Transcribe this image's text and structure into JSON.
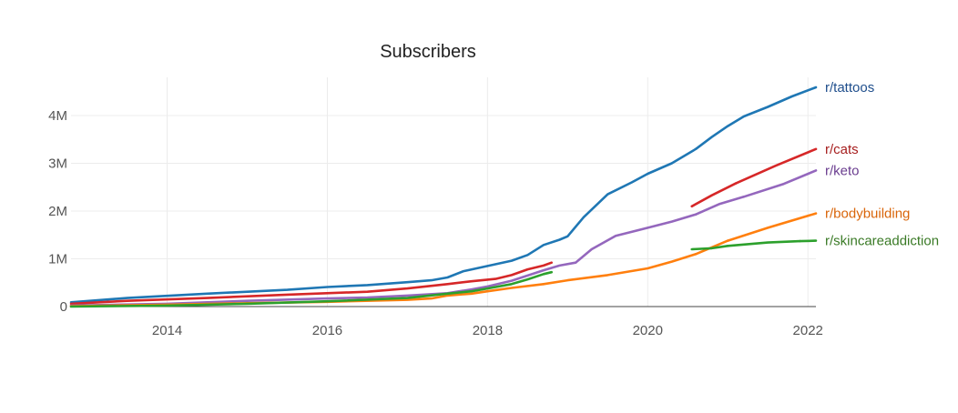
{
  "chart_data": {
    "type": "line",
    "title": "Subscribers",
    "xlabel": "",
    "ylabel": "",
    "xlim": [
      2012.8,
      2022.1
    ],
    "ylim": [
      0,
      4800000
    ],
    "x_ticks": [
      2014,
      2016,
      2018,
      2020,
      2022
    ],
    "x_tick_labels": [
      "2014",
      "2016",
      "2018",
      "2020",
      "2022"
    ],
    "y_ticks": [
      0,
      1000000,
      2000000,
      3000000,
      4000000
    ],
    "y_tick_labels": [
      "0",
      "1M",
      "2M",
      "3M",
      "4M"
    ],
    "grid": true,
    "series": [
      {
        "name": "r/tattoos",
        "color": "#1f77b4",
        "label_color": "#1f4e8c",
        "segments": [
          [
            [
              2012.8,
              90000
            ],
            [
              2013.5,
              180000
            ],
            [
              2014.5,
              270000
            ],
            [
              2015.5,
              350000
            ],
            [
              2016.0,
              410000
            ],
            [
              2016.5,
              450000
            ],
            [
              2017.0,
              510000
            ],
            [
              2017.3,
              550000
            ],
            [
              2017.5,
              610000
            ],
            [
              2017.7,
              740000
            ],
            [
              2018.0,
              850000
            ],
            [
              2018.3,
              960000
            ],
            [
              2018.5,
              1080000
            ],
            [
              2018.7,
              1290000
            ],
            [
              2018.9,
              1400000
            ],
            [
              2019.0,
              1470000
            ],
            [
              2019.2,
              1870000
            ],
            [
              2019.5,
              2350000
            ],
            [
              2019.8,
              2600000
            ],
            [
              2020.0,
              2780000
            ],
            [
              2020.3,
              3000000
            ],
            [
              2020.6,
              3300000
            ],
            [
              2020.8,
              3550000
            ],
            [
              2021.0,
              3780000
            ],
            [
              2021.2,
              3980000
            ],
            [
              2021.5,
              4180000
            ],
            [
              2021.8,
              4400000
            ],
            [
              2022.1,
              4590000
            ]
          ]
        ]
      },
      {
        "name": "r/cats",
        "color": "#d62728",
        "label_color": "#a61e1e",
        "segments": [
          [
            [
              2012.8,
              60000
            ],
            [
              2013.5,
              120000
            ],
            [
              2014.5,
              180000
            ],
            [
              2015.5,
              250000
            ],
            [
              2016.5,
              310000
            ],
            [
              2017.0,
              380000
            ],
            [
              2017.5,
              470000
            ],
            [
              2017.8,
              530000
            ],
            [
              2018.1,
              580000
            ],
            [
              2018.3,
              660000
            ],
            [
              2018.5,
              780000
            ],
            [
              2018.7,
              860000
            ],
            [
              2018.8,
              920000
            ]
          ],
          [
            [
              2020.55,
              2100000
            ],
            [
              2020.8,
              2330000
            ],
            [
              2021.1,
              2580000
            ]
          ],
          [
            [
              2021.1,
              2580000
            ],
            [
              2021.6,
              2950000
            ],
            [
              2022.1,
              3300000
            ]
          ]
        ]
      },
      {
        "name": "r/keto",
        "color": "#9467bd",
        "label_color": "#6a3d8f",
        "segments": [
          [
            [
              2012.8,
              20000
            ],
            [
              2014.0,
              60000
            ],
            [
              2015.0,
              120000
            ],
            [
              2016.0,
              170000
            ],
            [
              2016.5,
              190000
            ],
            [
              2017.0,
              230000
            ],
            [
              2017.5,
              280000
            ],
            [
              2017.8,
              360000
            ],
            [
              2018.0,
              420000
            ],
            [
              2018.3,
              540000
            ],
            [
              2018.5,
              650000
            ],
            [
              2018.7,
              760000
            ],
            [
              2018.9,
              860000
            ],
            [
              2019.1,
              920000
            ],
            [
              2019.3,
              1200000
            ],
            [
              2019.6,
              1480000
            ],
            [
              2020.0,
              1650000
            ],
            [
              2020.3,
              1780000
            ],
            [
              2020.6,
              1930000
            ]
          ],
          [
            [
              2020.6,
              1930000
            ],
            [
              2020.9,
              2150000
            ],
            [
              2021.2,
              2300000
            ]
          ],
          [
            [
              2021.2,
              2300000
            ],
            [
              2021.7,
              2570000
            ],
            [
              2022.1,
              2850000
            ]
          ]
        ]
      },
      {
        "name": "r/bodybuilding",
        "color": "#ff7f0e",
        "label_color": "#d9650a",
        "segments": [
          [
            [
              2012.8,
              10000
            ],
            [
              2014.0,
              40000
            ],
            [
              2015.0,
              70000
            ],
            [
              2016.0,
              100000
            ],
            [
              2017.0,
              140000
            ],
            [
              2017.3,
              170000
            ],
            [
              2017.5,
              230000
            ],
            [
              2017.8,
              270000
            ],
            [
              2018.0,
              320000
            ]
          ],
          [
            [
              2018.0,
              320000
            ],
            [
              2018.3,
              390000
            ],
            [
              2018.7,
              470000
            ]
          ],
          [
            [
              2018.7,
              470000
            ],
            [
              2019.0,
              550000
            ],
            [
              2019.5,
              660000
            ],
            [
              2020.0,
              800000
            ],
            [
              2020.3,
              940000
            ],
            [
              2020.6,
              1100000
            ]
          ],
          [
            [
              2020.6,
              1100000
            ],
            [
              2021.0,
              1380000
            ]
          ],
          [
            [
              2021.0,
              1380000
            ],
            [
              2021.5,
              1650000
            ],
            [
              2022.1,
              1950000
            ]
          ]
        ]
      },
      {
        "name": "r/skincareaddiction",
        "color": "#2ca02c",
        "label_color": "#3a7a26",
        "segments": [
          [
            [
              2012.8,
              0
            ],
            [
              2014.0,
              20000
            ],
            [
              2015.0,
              60000
            ],
            [
              2016.0,
              110000
            ],
            [
              2017.0,
              180000
            ],
            [
              2017.5,
              270000
            ],
            [
              2017.8,
              320000
            ],
            [
              2018.0,
              380000
            ],
            [
              2018.3,
              470000
            ],
            [
              2018.5,
              570000
            ],
            [
              2018.7,
              680000
            ],
            [
              2018.8,
              720000
            ]
          ],
          [
            [
              2020.55,
              1200000
            ],
            [
              2020.8,
              1220000
            ],
            [
              2021.0,
              1270000
            ]
          ],
          [
            [
              2021.0,
              1270000
            ],
            [
              2021.5,
              1340000
            ],
            [
              2021.9,
              1370000
            ]
          ],
          [
            [
              2021.9,
              1370000
            ],
            [
              2022.1,
              1380000
            ]
          ]
        ]
      }
    ]
  }
}
